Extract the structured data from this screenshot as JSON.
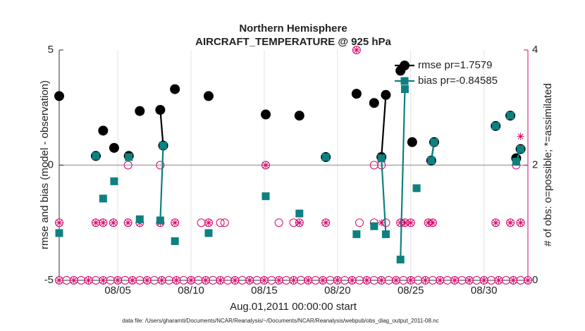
{
  "chart_data": {
    "type": "line",
    "title": [
      "Northern Hemisphere",
      "AIRCRAFT_TEMPERATURE @ 925 hPa"
    ],
    "xlabel": "Aug.01,2011 00:00:00 start",
    "ylabel": "rmse and bias (model - observation)",
    "y2label": "# of obs: o=possible; *=assimilated",
    "footnote": "data file: /Users/gharamti/Documents/NCAR/Reanalysis/~/Documents/NCAR/Reanalysis/webpub/obs_diag_output_2011-08.nc",
    "xlim": [
      0,
      32
    ],
    "xticks": [
      {
        "value": 4,
        "label": "08/05"
      },
      {
        "value": 9,
        "label": "08/10"
      },
      {
        "value": 14,
        "label": "08/15"
      },
      {
        "value": 19,
        "label": "08/20"
      },
      {
        "value": 24,
        "label": "08/25"
      },
      {
        "value": 29,
        "label": "08/30"
      }
    ],
    "ylim": [
      -5,
      5
    ],
    "yticks": [
      -5,
      0,
      5
    ],
    "y2lim": [
      0,
      4
    ],
    "y2ticks": [
      0,
      2,
      4
    ],
    "grid": "x",
    "hline": 0,
    "legend": "top-right",
    "y2color": "#d4086a",
    "series": [
      {
        "color": "#d4086a",
        "axis": "y2",
        "marker": "open-circle",
        "line": false,
        "x": [
          0,
          0.5,
          1,
          1.5,
          2,
          2.5,
          3,
          3.5,
          4,
          4.5,
          5,
          5.5,
          6,
          6.5,
          7,
          7.5,
          8,
          8.5,
          9,
          9.5,
          10,
          10.5,
          11,
          11.5,
          12,
          12.5,
          13,
          13.5,
          14,
          14.5,
          15,
          15.5,
          16,
          16.5,
          17,
          17.5,
          18,
          18.5,
          19,
          19.5,
          20,
          20.5,
          21,
          21.5,
          22,
          22.5,
          23,
          23.5,
          24,
          24.5,
          25,
          25.5,
          26,
          26.5,
          27,
          27.5,
          28,
          28.5,
          29,
          29.5,
          30,
          30.5,
          31,
          31.5,
          32,
          0,
          2.5,
          3,
          3.7,
          4.7,
          4.7,
          5.5,
          6.9,
          6.9,
          7.9,
          9.7,
          10.2,
          11,
          11.3,
          14.1,
          15,
          16,
          16.4,
          18.2,
          20.3,
          20.5,
          21.5,
          21.5,
          22,
          22.3,
          23.3,
          23.6,
          24,
          25.2,
          25.5,
          29.8,
          30.8,
          31.2,
          31.5
        ],
        "values": [
          0,
          0,
          0,
          0,
          0,
          0,
          0,
          0,
          0,
          0,
          0,
          0,
          0,
          0,
          0,
          0,
          0,
          0,
          0,
          0,
          0,
          0,
          0,
          0,
          0,
          0,
          0,
          0,
          0,
          0,
          0,
          0,
          0,
          0,
          0,
          0,
          0,
          0,
          0,
          0,
          0,
          0,
          0,
          0,
          0,
          0,
          0,
          0,
          0,
          0,
          0,
          0,
          0,
          0,
          0,
          0,
          0,
          0,
          0,
          0,
          0,
          0,
          0,
          0,
          0,
          1,
          1,
          1,
          1,
          1,
          2,
          1,
          1,
          2,
          1,
          1,
          1,
          1,
          1,
          2,
          1,
          1,
          1,
          1,
          4,
          1,
          1,
          2,
          2,
          1,
          1,
          1,
          1,
          1,
          1,
          1,
          1,
          2,
          1
        ]
      },
      {
        "color": "#d4086a",
        "axis": "y2",
        "marker": "asterisk",
        "line": false,
        "x": [
          0,
          1,
          2,
          3,
          4,
          5,
          6,
          7,
          8,
          9,
          10,
          11,
          12,
          13,
          14,
          15,
          16,
          17,
          18,
          19,
          20,
          21,
          22,
          23,
          24,
          25,
          26,
          27,
          28,
          29,
          30,
          31,
          32,
          0,
          2.5,
          3,
          3.7,
          4.7,
          5.5,
          6.9,
          7.9,
          10.2,
          16.4,
          18.2,
          22,
          23.3,
          23.6,
          24,
          25.2,
          25.5,
          29.8,
          30.8,
          31.5,
          31.5,
          14.1,
          20.3
        ],
        "values": [
          0,
          0,
          0,
          0,
          0,
          0,
          0,
          0,
          0,
          0,
          0,
          0,
          0,
          0,
          0,
          0,
          0,
          0,
          0,
          0,
          0,
          0,
          0,
          0,
          0,
          0,
          0,
          0,
          0,
          0,
          0,
          0,
          0,
          1,
          1,
          1,
          1,
          1,
          1,
          1,
          1,
          1,
          1,
          1,
          1,
          1,
          1,
          1,
          1,
          1,
          1,
          1,
          2.5,
          1,
          2,
          4
        ]
      },
      {
        "name": "rmse pr=1.7579",
        "color": "#000000",
        "marker": "circle",
        "line": true,
        "x": [
          0,
          1,
          2.5,
          2.75,
          3.0,
          3.4,
          3.75,
          4.2,
          4.75,
          5.1,
          5.5,
          6.2,
          6.9,
          7.1,
          7.5,
          7.9,
          9,
          10.2,
          12,
          14.1,
          15,
          16.4,
          17,
          18.2,
          19,
          20.3,
          21,
          21.5,
          21.8,
          22.0,
          22.3,
          22.8,
          23.3,
          23.7,
          24.1,
          25,
          25.4,
          25.6,
          27,
          29.8,
          30.3,
          30.8,
          31.0,
          31.2,
          31.5
        ],
        "values": [
          3.0,
          null,
          0.4,
          null,
          1.5,
          null,
          0.75,
          null,
          0.4,
          null,
          2.35,
          null,
          2.4,
          0.85,
          null,
          3.3,
          null,
          3.0,
          null,
          2.2,
          null,
          2.15,
          null,
          0.35,
          null,
          3.1,
          null,
          2.7,
          null,
          0.35,
          3.05,
          null,
          4.1,
          null,
          1.0,
          null,
          0.2,
          1.0,
          null,
          1.7,
          null,
          2.15,
          null,
          0.3,
          0.7
        ]
      },
      {
        "name": "bias pr=-0.84585",
        "color": "#0f8080",
        "marker": "square",
        "line": true,
        "x": [
          0,
          1,
          2.5,
          2.75,
          3.0,
          3.4,
          3.75,
          4.2,
          4.75,
          5.1,
          5.5,
          6.2,
          6.9,
          7.1,
          7.5,
          7.9,
          9,
          10.2,
          12,
          14.1,
          15,
          16.4,
          17,
          18.2,
          19,
          20.3,
          21,
          21.5,
          21.8,
          22.0,
          22.3,
          22.8,
          23.3,
          23.6,
          24.0,
          24.4,
          25,
          25.4,
          25.6,
          27,
          29.8,
          30.3,
          30.8,
          31.0,
          31.2,
          31.5
        ],
        "values": [
          -2.95,
          null,
          0.4,
          null,
          -1.45,
          null,
          -0.7,
          null,
          0.35,
          null,
          -2.35,
          null,
          -2.4,
          0.85,
          null,
          -3.3,
          null,
          -2.95,
          null,
          -1.35,
          null,
          -2.1,
          null,
          0.35,
          null,
          -3.0,
          null,
          -2.65,
          null,
          0.3,
          -3.0,
          null,
          -4.1,
          3.3,
          null,
          -1.0,
          null,
          0.2,
          1.0,
          null,
          1.7,
          null,
          2.15,
          null,
          0.15,
          0.7
        ]
      }
    ]
  }
}
